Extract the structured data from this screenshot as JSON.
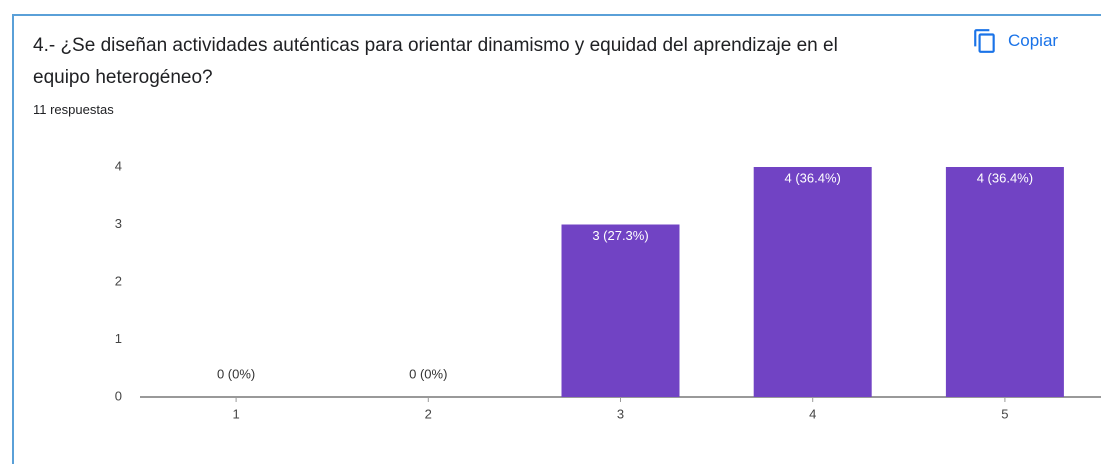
{
  "chart_data": {
    "type": "bar",
    "title": "4.- ¿Se diseñan actividades auténticas para orientar dinamismo y equidad del aprendizaje en el equipo heterogéneo?",
    "subtitle": "11 respuestas",
    "categories": [
      "1",
      "2",
      "3",
      "4",
      "5"
    ],
    "values": [
      0,
      0,
      3,
      4,
      4
    ],
    "value_labels": [
      "0 (0%)",
      "0 (0%)",
      "3 (27.3%)",
      "4 (36.4%)",
      "4 (36.4%)"
    ],
    "color": "#7143c4",
    "ylim": [
      0,
      4
    ],
    "yticks": [
      0,
      1,
      2,
      3,
      4
    ],
    "grid": false
  },
  "copy_button": "Copiar"
}
